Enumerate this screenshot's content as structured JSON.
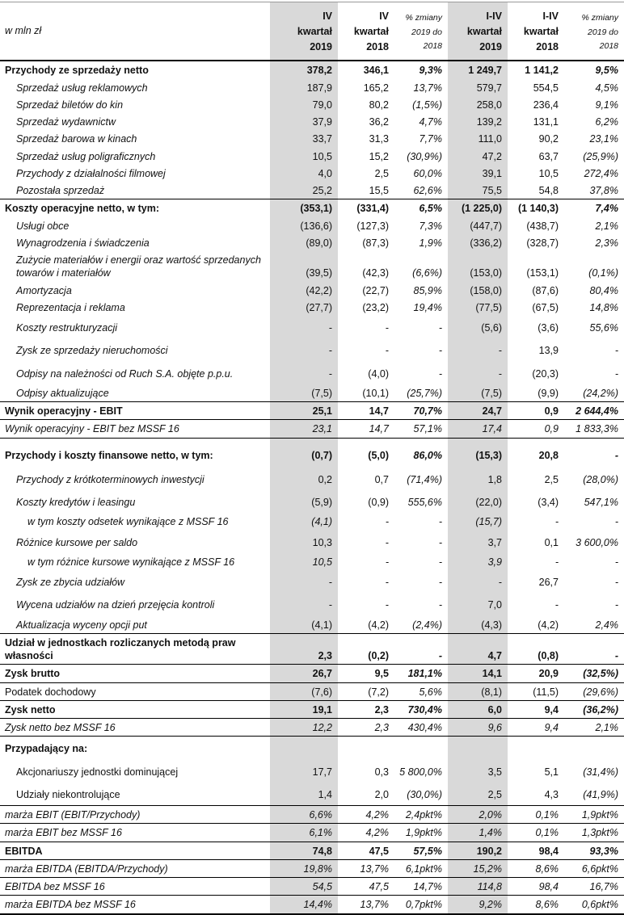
{
  "table": {
    "columns": [
      {
        "name": "unit",
        "kind": "rowlabel",
        "label": "w mln zł",
        "shaded": false
      },
      {
        "name": "q4-2019",
        "kind": "period",
        "label": "IV\nkwartał\n2019",
        "shaded": true
      },
      {
        "name": "q4-2018",
        "kind": "period",
        "label": "IV\nkwartał\n2018",
        "shaded": false
      },
      {
        "name": "change-q4",
        "kind": "change",
        "label": "% zmiany\n2019 do\n2018",
        "shaded": false
      },
      {
        "name": "fy-2019",
        "kind": "period",
        "label": "I-IV\nkwartał\n2019",
        "shaded": true
      },
      {
        "name": "fy-2018",
        "kind": "period",
        "label": "I-IV\nkwartał\n2018",
        "shaded": false
      },
      {
        "name": "change-fy",
        "kind": "change",
        "label": "% zmiany\n2019 do\n2018",
        "shaded": false
      }
    ],
    "shaded_value_columns": [
      0,
      3
    ],
    "percent_value_columns": [
      2,
      5
    ],
    "accent_color": "#d9d9d9",
    "rows": [
      {
        "label": "Przychody ze sprzedaży netto",
        "type": "section",
        "indent": 0,
        "line": false,
        "values": [
          "378,2",
          "346,1",
          "9,3%",
          "1 249,7",
          "1 141,2",
          "9,5%"
        ]
      },
      {
        "label": "Sprzedaż usług reklamowych",
        "type": "detail",
        "indent": 1,
        "line": false,
        "values": [
          "187,9",
          "165,2",
          "13,7%",
          "579,7",
          "554,5",
          "4,5%"
        ]
      },
      {
        "label": "Sprzedaż biletów do kin",
        "type": "detail",
        "indent": 1,
        "line": false,
        "values": [
          "79,0",
          "80,2",
          "(1,5%)",
          "258,0",
          "236,4",
          "9,1%"
        ]
      },
      {
        "label": "Sprzedaż wydawnictw",
        "type": "detail",
        "indent": 1,
        "line": false,
        "values": [
          "37,9",
          "36,2",
          "4,7%",
          "139,2",
          "131,1",
          "6,2%"
        ]
      },
      {
        "label": "Sprzedaż barowa w kinach",
        "type": "detail",
        "indent": 1,
        "line": false,
        "values": [
          "33,7",
          "31,3",
          "7,7%",
          "111,0",
          "90,2",
          "23,1%"
        ]
      },
      {
        "label": "Sprzedaż usług poligraficznych",
        "type": "detail",
        "indent": 1,
        "line": false,
        "values": [
          "10,5",
          "15,2",
          "(30,9%)",
          "47,2",
          "63,7",
          "(25,9%)"
        ]
      },
      {
        "label": "Przychody z działalności filmowej",
        "type": "detail",
        "indent": 1,
        "line": false,
        "values": [
          "4,0",
          "2,5",
          "60,0%",
          "39,1",
          "10,5",
          "272,4%"
        ]
      },
      {
        "label": "Pozostała sprzedaż",
        "type": "detail",
        "indent": 1,
        "line": false,
        "values": [
          "25,2",
          "15,5",
          "62,6%",
          "75,5",
          "54,8",
          "37,8%"
        ]
      },
      {
        "label": "Koszty operacyjne netto, w tym:",
        "type": "section",
        "indent": 0,
        "line": true,
        "values": [
          "(353,1)",
          "(331,4)",
          "6,5%",
          "(1 225,0)",
          "(1 140,3)",
          "7,4%"
        ]
      },
      {
        "label": "Usługi obce",
        "type": "detail",
        "indent": 1,
        "line": false,
        "values": [
          "(136,6)",
          "(127,3)",
          "7,3%",
          "(447,7)",
          "(438,7)",
          "2,1%"
        ]
      },
      {
        "label": "Wynagrodzenia i świadczenia",
        "type": "detail",
        "indent": 1,
        "line": false,
        "values": [
          "(89,0)",
          "(87,3)",
          "1,9%",
          "(336,2)",
          "(328,7)",
          "2,3%"
        ]
      },
      {
        "label": "Zużycie materiałów i energii oraz wartość sprzedanych towarów i materiałów",
        "type": "detail",
        "indent": 1,
        "line": false,
        "values": [
          "(39,5)",
          "(42,3)",
          "(6,6%)",
          "(153,0)",
          "(153,1)",
          "(0,1%)"
        ]
      },
      {
        "label": "Amortyzacja",
        "type": "detail",
        "indent": 1,
        "line": false,
        "values": [
          "(42,2)",
          "(22,7)",
          "85,9%",
          "(158,0)",
          "(87,6)",
          "80,4%"
        ]
      },
      {
        "label": "Reprezentacja i reklama",
        "type": "detail",
        "indent": 1,
        "line": false,
        "values": [
          "(27,7)",
          "(23,2)",
          "19,4%",
          "(77,5)",
          "(67,5)",
          "14,8%"
        ]
      },
      {
        "label": "Koszty restrukturyzacji",
        "type": "detail",
        "indent": 1,
        "line": false,
        "pad": "tall",
        "values": [
          "-",
          "-",
          "-",
          "(5,6)",
          "(3,6)",
          "55,6%"
        ]
      },
      {
        "label": "Zysk ze sprzedaży nieruchomości",
        "type": "detail",
        "indent": 1,
        "line": false,
        "pad": "tall",
        "values": [
          "-",
          "-",
          "-",
          "-",
          "13,9",
          "-"
        ]
      },
      {
        "label": "Odpisy na należności od Ruch S.A. objęte p.p.u.",
        "type": "detail",
        "indent": 1,
        "line": false,
        "pad": "tall",
        "values": [
          "-",
          "(4,0)",
          "-",
          "-",
          "(20,3)",
          "-"
        ]
      },
      {
        "label": "Odpisy aktualizujące",
        "type": "detail",
        "indent": 1,
        "line": false,
        "values": [
          "(7,5)",
          "(10,1)",
          "(25,7%)",
          "(7,5)",
          "(9,9)",
          "(24,2%)"
        ]
      },
      {
        "label": "Wynik operacyjny - EBIT",
        "type": "section",
        "indent": 0,
        "line": true,
        "values": [
          "25,1",
          "14,7",
          "70,7%",
          "24,7",
          "0,9",
          "2 644,4%"
        ]
      },
      {
        "label": "Wynik operacyjny - EBIT bez MSSF 16",
        "type": "italic",
        "indent": 0,
        "line": true,
        "values": [
          "23,1",
          "14,7",
          "57,1%",
          "17,4",
          "0,9",
          "1 833,3%"
        ]
      },
      {
        "label": "Przychody i koszty finansowe netto, w tym:",
        "type": "section",
        "indent": 0,
        "line": true,
        "pad": "xtall",
        "values": [
          "(0,7)",
          "(5,0)",
          "86,0%",
          "(15,3)",
          "20,8",
          "-"
        ]
      },
      {
        "label": "Przychody z krótkoterminowych inwestycji",
        "type": "detail",
        "indent": 1,
        "line": false,
        "pad": "tall",
        "values": [
          "0,2",
          "0,7",
          "(71,4%)",
          "1,8",
          "2,5",
          "(28,0%)"
        ]
      },
      {
        "label": "Koszty kredytów i leasingu",
        "type": "detail",
        "indent": 1,
        "line": false,
        "pad": "tall",
        "values": [
          "(5,9)",
          "(0,9)",
          "555,6%",
          "(22,0)",
          "(3,4)",
          "547,1%"
        ]
      },
      {
        "label": "w tym koszty odsetek wynikające z MSSF 16",
        "type": "subdetail",
        "indent": 2,
        "line": false,
        "values": [
          "(4,1)",
          "-",
          "-",
          "(15,7)",
          "-",
          "-"
        ]
      },
      {
        "label": "Różnice kursowe per saldo",
        "type": "detail",
        "indent": 1,
        "line": false,
        "pad": "tall",
        "values": [
          "10,3",
          "-",
          "-",
          "3,7",
          "0,1",
          "3 600,0%"
        ]
      },
      {
        "label": "w tym różnice kursowe wynikające z MSSF 16",
        "type": "subdetail",
        "indent": 2,
        "line": false,
        "values": [
          "10,5",
          "-",
          "-",
          "3,9",
          "-",
          "-"
        ]
      },
      {
        "label": "Zysk ze zbycia udziałów",
        "type": "detail",
        "indent": 1,
        "line": false,
        "pad": "tall",
        "values": [
          "-",
          "-",
          "-",
          "-",
          "26,7",
          "-"
        ]
      },
      {
        "label": "Wycena udziałów na dzień przejęcia kontroli",
        "type": "detail",
        "indent": 1,
        "line": false,
        "pad": "tall",
        "values": [
          "-",
          "-",
          "-",
          "7,0",
          "-",
          "-"
        ]
      },
      {
        "label": "Aktualizacja wyceny opcji put",
        "type": "detail",
        "indent": 1,
        "line": false,
        "values": [
          "(4,1)",
          "(4,2)",
          "(2,4%)",
          "(4,3)",
          "(4,2)",
          "2,4%"
        ]
      },
      {
        "label": "Udział w jednostkach rozliczanych metodą praw własności",
        "type": "section",
        "indent": 0,
        "line": true,
        "values": [
          "2,3",
          "(0,2)",
          "-",
          "4,7",
          "(0,8)",
          "-"
        ]
      },
      {
        "label": "Zysk brutto",
        "type": "section",
        "indent": 0,
        "line": true,
        "values": [
          "26,7",
          "9,5",
          "181,1%",
          "14,1",
          "20,9",
          "(32,5%)"
        ]
      },
      {
        "label": "Podatek dochodowy",
        "type": "plain",
        "indent": 0,
        "line": true,
        "values": [
          "(7,6)",
          "(7,2)",
          "5,6%",
          "(8,1)",
          "(11,5)",
          "(29,6%)"
        ]
      },
      {
        "label": "Zysk netto",
        "type": "section",
        "indent": 0,
        "line": true,
        "values": [
          "19,1",
          "2,3",
          "730,4%",
          "6,0",
          "9,4",
          "(36,2%)"
        ]
      },
      {
        "label": "Zysk netto bez MSSF 16",
        "type": "italic",
        "indent": 0,
        "line": true,
        "values": [
          "12,2",
          "2,3",
          "430,4%",
          "9,6",
          "9,4",
          "2,1%"
        ]
      },
      {
        "label": "Przypadający na:",
        "type": "section",
        "indent": 0,
        "line": true,
        "pad": "tall",
        "values": [
          "",
          "",
          "",
          "",
          "",
          ""
        ]
      },
      {
        "label": "Akcjonariuszy jednostki dominującej",
        "type": "plain",
        "indent": 1,
        "line": false,
        "pad": "tall",
        "values": [
          "17,7",
          "0,3",
          "5 800,0%",
          "3,5",
          "5,1",
          "(31,4%)"
        ]
      },
      {
        "label": "Udziały niekontrolujące",
        "type": "plain",
        "indent": 1,
        "line": false,
        "pad": "tall",
        "values": [
          "1,4",
          "2,0",
          "(30,0%)",
          "2,5",
          "4,3",
          "(41,9%)"
        ]
      },
      {
        "label": "marża EBIT (EBIT/Przychody)",
        "type": "italic",
        "indent": 0,
        "line": true,
        "values": [
          "6,6%",
          "4,2%",
          "2,4pkt%",
          "2,0%",
          "0,1%",
          "1,9pkt%"
        ]
      },
      {
        "label": "marża EBIT bez MSSF 16",
        "type": "italic",
        "indent": 0,
        "line": true,
        "values": [
          "6,1%",
          "4,2%",
          "1,9pkt%",
          "1,4%",
          "0,1%",
          "1,3pkt%"
        ]
      },
      {
        "label": "EBITDA",
        "type": "section",
        "indent": 0,
        "line": true,
        "values": [
          "74,8",
          "47,5",
          "57,5%",
          "190,2",
          "98,4",
          "93,3%"
        ]
      },
      {
        "label": "marża EBITDA (EBITDA/Przychody)",
        "type": "italic",
        "indent": 0,
        "line": true,
        "values": [
          "19,8%",
          "13,7%",
          "6,1pkt%",
          "15,2%",
          "8,6%",
          "6,6pkt%"
        ]
      },
      {
        "label": "EBITDA bez MSSF 16",
        "type": "italic",
        "indent": 0,
        "line": true,
        "values": [
          "54,5",
          "47,5",
          "14,7%",
          "114,8",
          "98,4",
          "16,7%"
        ]
      },
      {
        "label": "marża EBITDA bez MSSF 16",
        "type": "italic",
        "indent": 0,
        "line": true,
        "values": [
          "14,4%",
          "13,7%",
          "0,7pkt%",
          "9,2%",
          "8,6%",
          "0,6pkt%"
        ]
      }
    ]
  }
}
